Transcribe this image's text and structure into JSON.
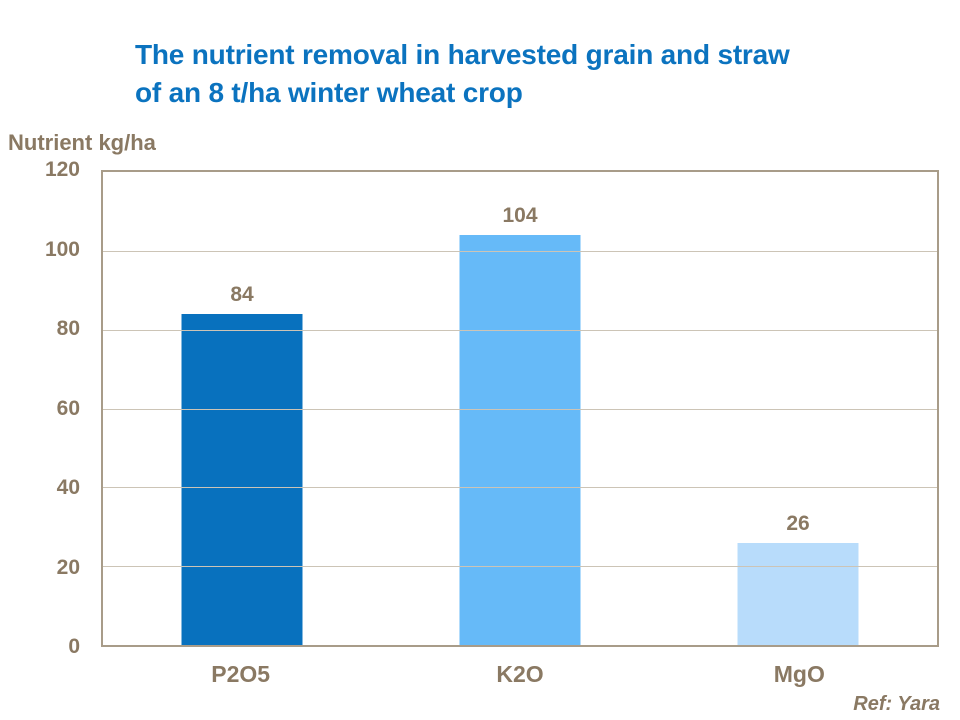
{
  "header": {
    "title_line1": "The nutrient removal in harvested grain and straw",
    "title_line2": "of an 8 t/ha winter wheat crop"
  },
  "chart_data": {
    "type": "bar",
    "title": "The nutrient removal in harvested grain and straw of an 8 t/ha winter wheat crop",
    "unit_label": "Nutrient kg/ha",
    "categories": [
      "P2O5",
      "K2O",
      "MgO"
    ],
    "values": [
      84,
      104,
      26
    ],
    "bar_colors": [
      "#0871BE",
      "#66BAF8",
      "#B8DCFB"
    ],
    "ylim": [
      0,
      120
    ],
    "yticks": [
      0,
      20,
      40,
      60,
      80,
      100,
      120
    ],
    "grid": "horizontal",
    "legend": "none",
    "data_labels": true
  },
  "footer": {
    "ref": "Ref: Yara"
  },
  "colors": {
    "title_text": "#0B73BF",
    "axis_text": "#8A7963",
    "plot_border": "#A89C89",
    "gridline": "#CCC4B6",
    "background": "#FFFFFF"
  }
}
